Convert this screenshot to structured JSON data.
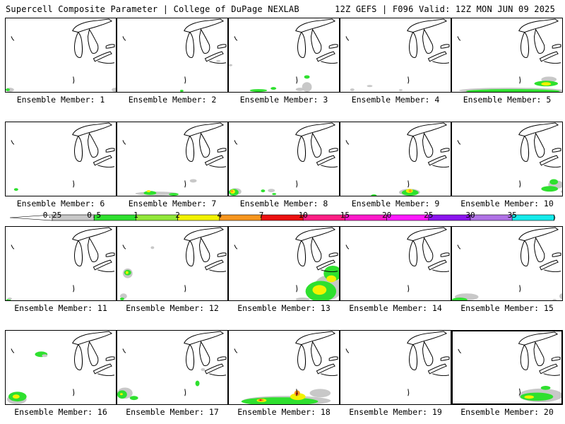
{
  "header": {
    "title_left": "Supercell Composite Parameter | College of DuPage NEXLAB",
    "title_right": "12Z GEFS | F096 Valid: 12Z MON JUN 09 2025"
  },
  "panels": [
    {
      "label": "Ensemble Member: 1",
      "blobs": [
        [
          "gray",
          0,
          100,
          12,
          6
        ],
        [
          "green",
          0,
          101,
          6,
          4
        ],
        [
          "gray",
          152,
          100,
          10,
          6
        ]
      ]
    },
    {
      "label": "Ensemble Member: 2",
      "blobs": [
        [
          "gray",
          142,
          60,
          6,
          3
        ],
        [
          "green",
          90,
          103,
          5,
          3
        ]
      ]
    },
    {
      "label": "Ensemble Member: 3",
      "blobs": [
        [
          "gray",
          0,
          66,
          5,
          3
        ],
        [
          "gray",
          105,
          92,
          14,
          14
        ],
        [
          "green",
          108,
          82,
          8,
          5
        ],
        [
          "green",
          30,
          102,
          25,
          4
        ],
        [
          "green",
          60,
          99,
          8,
          4
        ],
        [
          "gray",
          96,
          100,
          12,
          5
        ]
      ]
    },
    {
      "label": "Ensemble Member: 4",
      "blobs": [
        [
          "gray",
          14,
          101,
          6,
          4
        ],
        [
          "gray",
          38,
          96,
          8,
          3
        ],
        [
          "gray",
          84,
          102,
          5,
          3
        ]
      ]
    },
    {
      "label": "Ensemble Member: 5",
      "blobs": [
        [
          "gray",
          10,
          100,
          150,
          8
        ],
        [
          "gray",
          128,
          84,
          22,
          8
        ],
        [
          "green",
          20,
          102,
          135,
          6
        ],
        [
          "green",
          118,
          90,
          34,
          8
        ],
        [
          "yellow",
          128,
          92,
          14,
          5
        ]
      ]
    },
    {
      "label": "Ensemble Member: 6",
      "blobs": [
        [
          "green",
          12,
          95,
          6,
          4
        ],
        [
          "gray",
          160,
          104,
          4,
          3
        ]
      ]
    },
    {
      "label": "Ensemble Member: 7",
      "blobs": [
        [
          "gray",
          26,
          100,
          60,
          6
        ],
        [
          "gray",
          104,
          82,
          10,
          5
        ],
        [
          "green",
          38,
          99,
          18,
          6
        ],
        [
          "green",
          74,
          102,
          14,
          4
        ],
        [
          "yellow",
          42,
          98,
          6,
          3
        ]
      ]
    },
    {
      "label": "Ensemble Member: 8",
      "blobs": [
        [
          "gray",
          2,
          95,
          16,
          10
        ],
        [
          "green",
          0,
          96,
          14,
          10
        ],
        [
          "yellow",
          2,
          97,
          7,
          6
        ],
        [
          "orange",
          3,
          98,
          3,
          3
        ],
        [
          "gray",
          56,
          96,
          10,
          5
        ],
        [
          "green",
          46,
          97,
          6,
          4
        ],
        [
          "green",
          62,
          102,
          6,
          3
        ]
      ]
    },
    {
      "label": "Ensemble Member: 9",
      "blobs": [
        [
          "gray",
          84,
          96,
          30,
          10
        ],
        [
          "green",
          88,
          97,
          24,
          9
        ],
        [
          "yellow",
          94,
          96,
          10,
          6
        ],
        [
          "orange",
          98,
          97,
          4,
          4
        ],
        [
          "green",
          44,
          104,
          8,
          3
        ]
      ]
    },
    {
      "label": "Ensemble Member: 10",
      "blobs": [
        [
          "gray",
          138,
          84,
          22,
          12
        ],
        [
          "green",
          128,
          92,
          24,
          8
        ],
        [
          "green",
          140,
          82,
          12,
          8
        ],
        [
          "gray",
          156,
          98,
          6,
          4
        ]
      ]
    },
    {
      "label": "Ensemble Member: 11",
      "blobs": [
        [
          "green",
          0,
          104,
          8,
          6
        ],
        [
          "gray",
          3,
          102,
          6,
          3
        ]
      ]
    },
    {
      "label": "Ensemble Member: 12",
      "blobs": [
        [
          "gray",
          8,
          60,
          14,
          14
        ],
        [
          "green",
          10,
          62,
          10,
          8
        ],
        [
          "yellow",
          12,
          64,
          4,
          4
        ],
        [
          "gray",
          4,
          96,
          10,
          8
        ],
        [
          "green",
          4,
          102,
          6,
          4
        ],
        [
          "gray",
          48,
          28,
          5,
          4
        ]
      ]
    },
    {
      "label": "Ensemble Member: 13",
      "blobs": [
        [
          "gray",
          122,
          70,
          40,
          36
        ],
        [
          "green",
          110,
          78,
          44,
          30
        ],
        [
          "green",
          136,
          56,
          26,
          22
        ],
        [
          "yellow",
          120,
          84,
          20,
          14
        ],
        [
          "yellow",
          140,
          70,
          14,
          10
        ],
        [
          "gray",
          96,
          102,
          20,
          5
        ]
      ]
    },
    {
      "label": "Ensemble Member: 14",
      "blobs": []
    },
    {
      "label": "Ensemble Member: 15",
      "blobs": [
        [
          "gray",
          4,
          96,
          34,
          10
        ],
        [
          "green",
          0,
          102,
          22,
          6
        ],
        [
          "gray",
          154,
          96,
          8,
          8
        ],
        [
          "gray",
          144,
          104,
          6,
          3
        ]
      ]
    },
    {
      "label": "Ensemble Member: 16",
      "blobs": [
        [
          "green",
          42,
          30,
          18,
          8
        ],
        [
          "gray",
          52,
          34,
          8,
          4
        ],
        [
          "gray",
          2,
          92,
          28,
          14
        ],
        [
          "green",
          4,
          88,
          26,
          14
        ],
        [
          "yellow",
          10,
          92,
          10,
          6
        ]
      ]
    },
    {
      "label": "Ensemble Member: 17",
      "blobs": [
        [
          "gray",
          0,
          82,
          22,
          16
        ],
        [
          "green",
          0,
          86,
          14,
          12
        ],
        [
          "yellow",
          4,
          90,
          4,
          3
        ],
        [
          "green",
          18,
          94,
          12,
          6
        ],
        [
          "green",
          112,
          72,
          6,
          8
        ],
        [
          "gray",
          120,
          54,
          6,
          4
        ]
      ]
    },
    {
      "label": "Ensemble Member: 18",
      "blobs": [
        [
          "gray",
          20,
          94,
          126,
          14
        ],
        [
          "green",
          18,
          96,
          110,
          12
        ],
        [
          "yellow",
          40,
          98,
          14,
          5
        ],
        [
          "orange",
          42,
          98,
          8,
          4
        ],
        [
          "red",
          44,
          99,
          3,
          2
        ],
        [
          "yellow",
          88,
          90,
          22,
          10
        ],
        [
          "orange",
          94,
          86,
          8,
          8
        ],
        [
          "red",
          96,
          89,
          3,
          3
        ],
        [
          "gray",
          116,
          84,
          30,
          12
        ]
      ]
    },
    {
      "label": "Ensemble Member: 19",
      "blobs": []
    },
    {
      "label": "Ensemble Member: 20",
      "blobs": [
        [
          "gray",
          96,
          84,
          64,
          20
        ],
        [
          "green",
          98,
          90,
          48,
          12
        ],
        [
          "yellow",
          104,
          94,
          14,
          5
        ],
        [
          "green",
          128,
          80,
          14,
          6
        ]
      ]
    }
  ],
  "legend": {
    "labels": [
      "0.25",
      "0.5",
      "1",
      "2",
      "4",
      "7",
      "10",
      "15",
      "20",
      "25",
      "30",
      "35"
    ],
    "colors": [
      "#c8c8c8",
      "#2fe02f",
      "#92e83a",
      "#f2f200",
      "#f7961e",
      "#ec1010",
      "#ff1e84",
      "#ff19ca",
      "#ff19ff",
      "#8b14ee",
      "#b072e6",
      "#14ebeb"
    ]
  },
  "colors": {
    "gray": "#c8c8c8",
    "green": "#2fe02f",
    "yellow": "#f2f200",
    "orange": "#f7961e",
    "red": "#ec1010"
  }
}
